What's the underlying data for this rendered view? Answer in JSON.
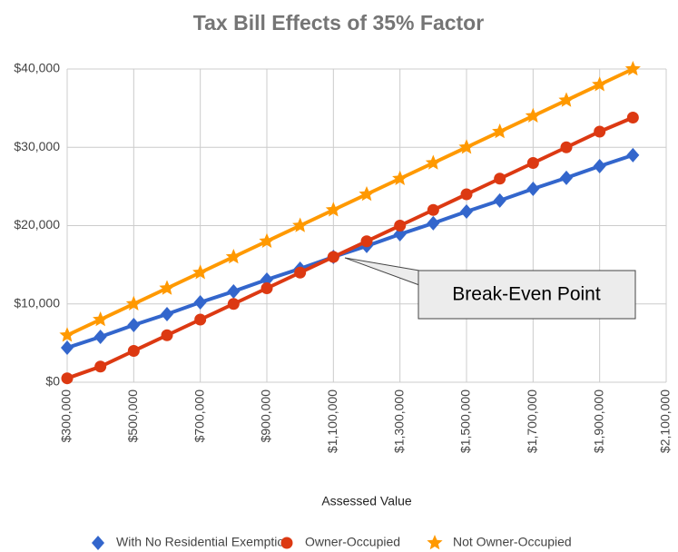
{
  "chart_data": {
    "type": "line",
    "title": "Tax Bill Effects of 35% Factor",
    "x_label": "Assessed Value",
    "annotation": "Break-Even Point",
    "x": [
      300000,
      400000,
      500000,
      600000,
      700000,
      800000,
      900000,
      1000000,
      1100000,
      1200000,
      1300000,
      1400000,
      1500000,
      1600000,
      1700000,
      1800000,
      1900000,
      2000000
    ],
    "series": [
      {
        "name": "With No Residential Exemption",
        "color": "#3366cc",
        "marker": "diamond",
        "values": [
          4400,
          5800,
          7300,
          8700,
          10200,
          11600,
          13100,
          14500,
          16000,
          17400,
          18900,
          20300,
          21800,
          23200,
          24700,
          26100,
          27600,
          29000
        ]
      },
      {
        "name": "Owner-Occupied",
        "color": "#dc3912",
        "marker": "circle",
        "values": [
          500,
          2000,
          4000,
          6000,
          8000,
          10000,
          12000,
          14000,
          16000,
          18000,
          20000,
          22000,
          24000,
          26000,
          28000,
          30000,
          32000,
          33800
        ]
      },
      {
        "name": "Not Owner-Occupied",
        "color": "#ff9900",
        "marker": "star",
        "values": [
          6000,
          8000,
          10000,
          12000,
          14000,
          16000,
          18000,
          20000,
          22000,
          24000,
          26000,
          28000,
          30000,
          32000,
          34000,
          36000,
          38000,
          40000
        ]
      }
    ],
    "xlim": [
      300000,
      2100000
    ],
    "xticks": [
      {
        "value": 300000,
        "label": "$300,000"
      },
      {
        "value": 500000,
        "label": "$500,000"
      },
      {
        "value": 700000,
        "label": "$700,000"
      },
      {
        "value": 900000,
        "label": "$900,000"
      },
      {
        "value": 1100000,
        "label": "$1,100,000"
      },
      {
        "value": 1300000,
        "label": "$1,300,000"
      },
      {
        "value": 1500000,
        "label": "$1,500,000"
      },
      {
        "value": 1700000,
        "label": "$1,700,000"
      },
      {
        "value": 1900000,
        "label": "$1,900,000"
      },
      {
        "value": 2100000,
        "label": "$2,100,000"
      }
    ],
    "ylim": [
      0,
      40000
    ],
    "yticks": [
      {
        "value": 0,
        "label": "$0"
      },
      {
        "value": 10000,
        "label": "$10,000"
      },
      {
        "value": 20000,
        "label": "$20,000"
      },
      {
        "value": 30000,
        "label": "$30,000"
      },
      {
        "value": 40000,
        "label": "$40,000"
      }
    ],
    "grid": true,
    "legend": "bottom"
  }
}
